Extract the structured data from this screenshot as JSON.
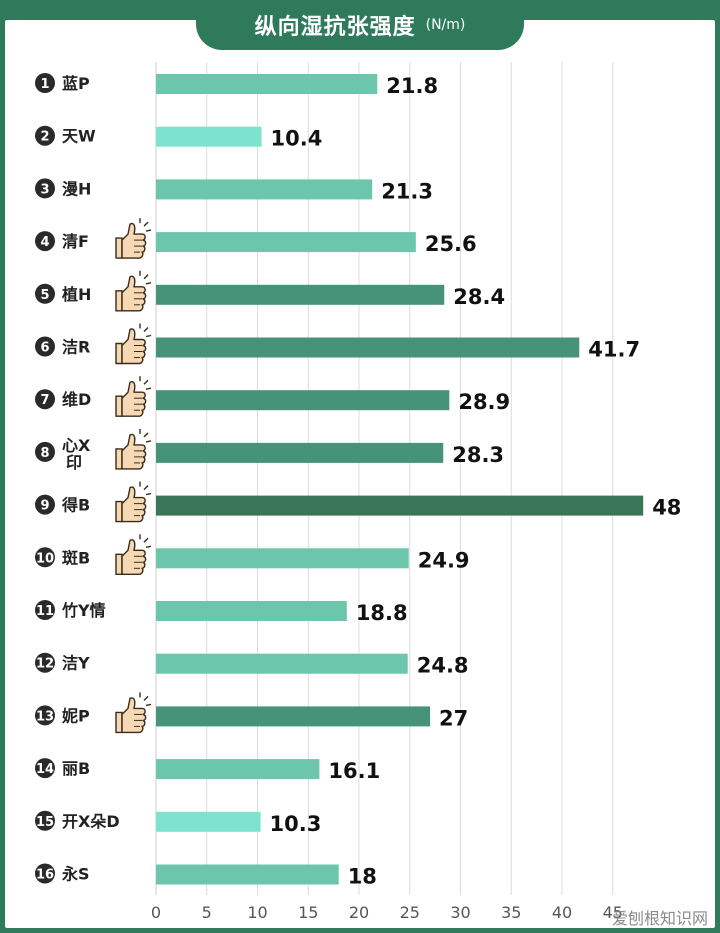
{
  "title": "纵向湿抗张强度",
  "unit": "(N/m)",
  "watermark": "爱刨根知识网",
  "chart_data": {
    "type": "bar",
    "orientation": "horizontal",
    "title": "纵向湿抗张强度 (N/m)",
    "categories": [
      "蓝P",
      "天W",
      "漫H",
      "清F",
      "植H",
      "洁R",
      "维D",
      "心X印",
      "得B",
      "斑B",
      "竹Y情",
      "洁Y",
      "妮P",
      "丽B",
      "开X朵D",
      "永S"
    ],
    "indices": [
      "1",
      "2",
      "3",
      "4",
      "5",
      "6",
      "7",
      "8",
      "9",
      "10",
      "11",
      "12",
      "13",
      "14",
      "15",
      "16"
    ],
    "values": [
      21.8,
      10.4,
      21.3,
      25.6,
      28.4,
      41.7,
      28.9,
      28.3,
      48,
      24.9,
      18.8,
      24.8,
      27,
      16.1,
      10.3,
      18
    ],
    "value_labels": [
      "21.8",
      "10.4",
      "21.3",
      "25.6",
      "28.4",
      "41.7",
      "28.9",
      "28.3",
      "48",
      "24.9",
      "18.8",
      "24.8",
      "27",
      "16.1",
      "10.3",
      "18"
    ],
    "thumbs_up": [
      false,
      false,
      false,
      true,
      true,
      true,
      true,
      true,
      true,
      true,
      false,
      false,
      true,
      false,
      false,
      false
    ],
    "xlim": [
      0,
      48
    ],
    "xticks": [
      0,
      5,
      10,
      15,
      20,
      25,
      30,
      35,
      40,
      45
    ],
    "grid": true,
    "colors": {
      "light": "#7de3cf",
      "mid": "#6cc6ac",
      "dark": "#46937a",
      "darkest": "#3a7558",
      "number_circle": "#2a2a2a",
      "frame": "#2f7a5a"
    }
  }
}
